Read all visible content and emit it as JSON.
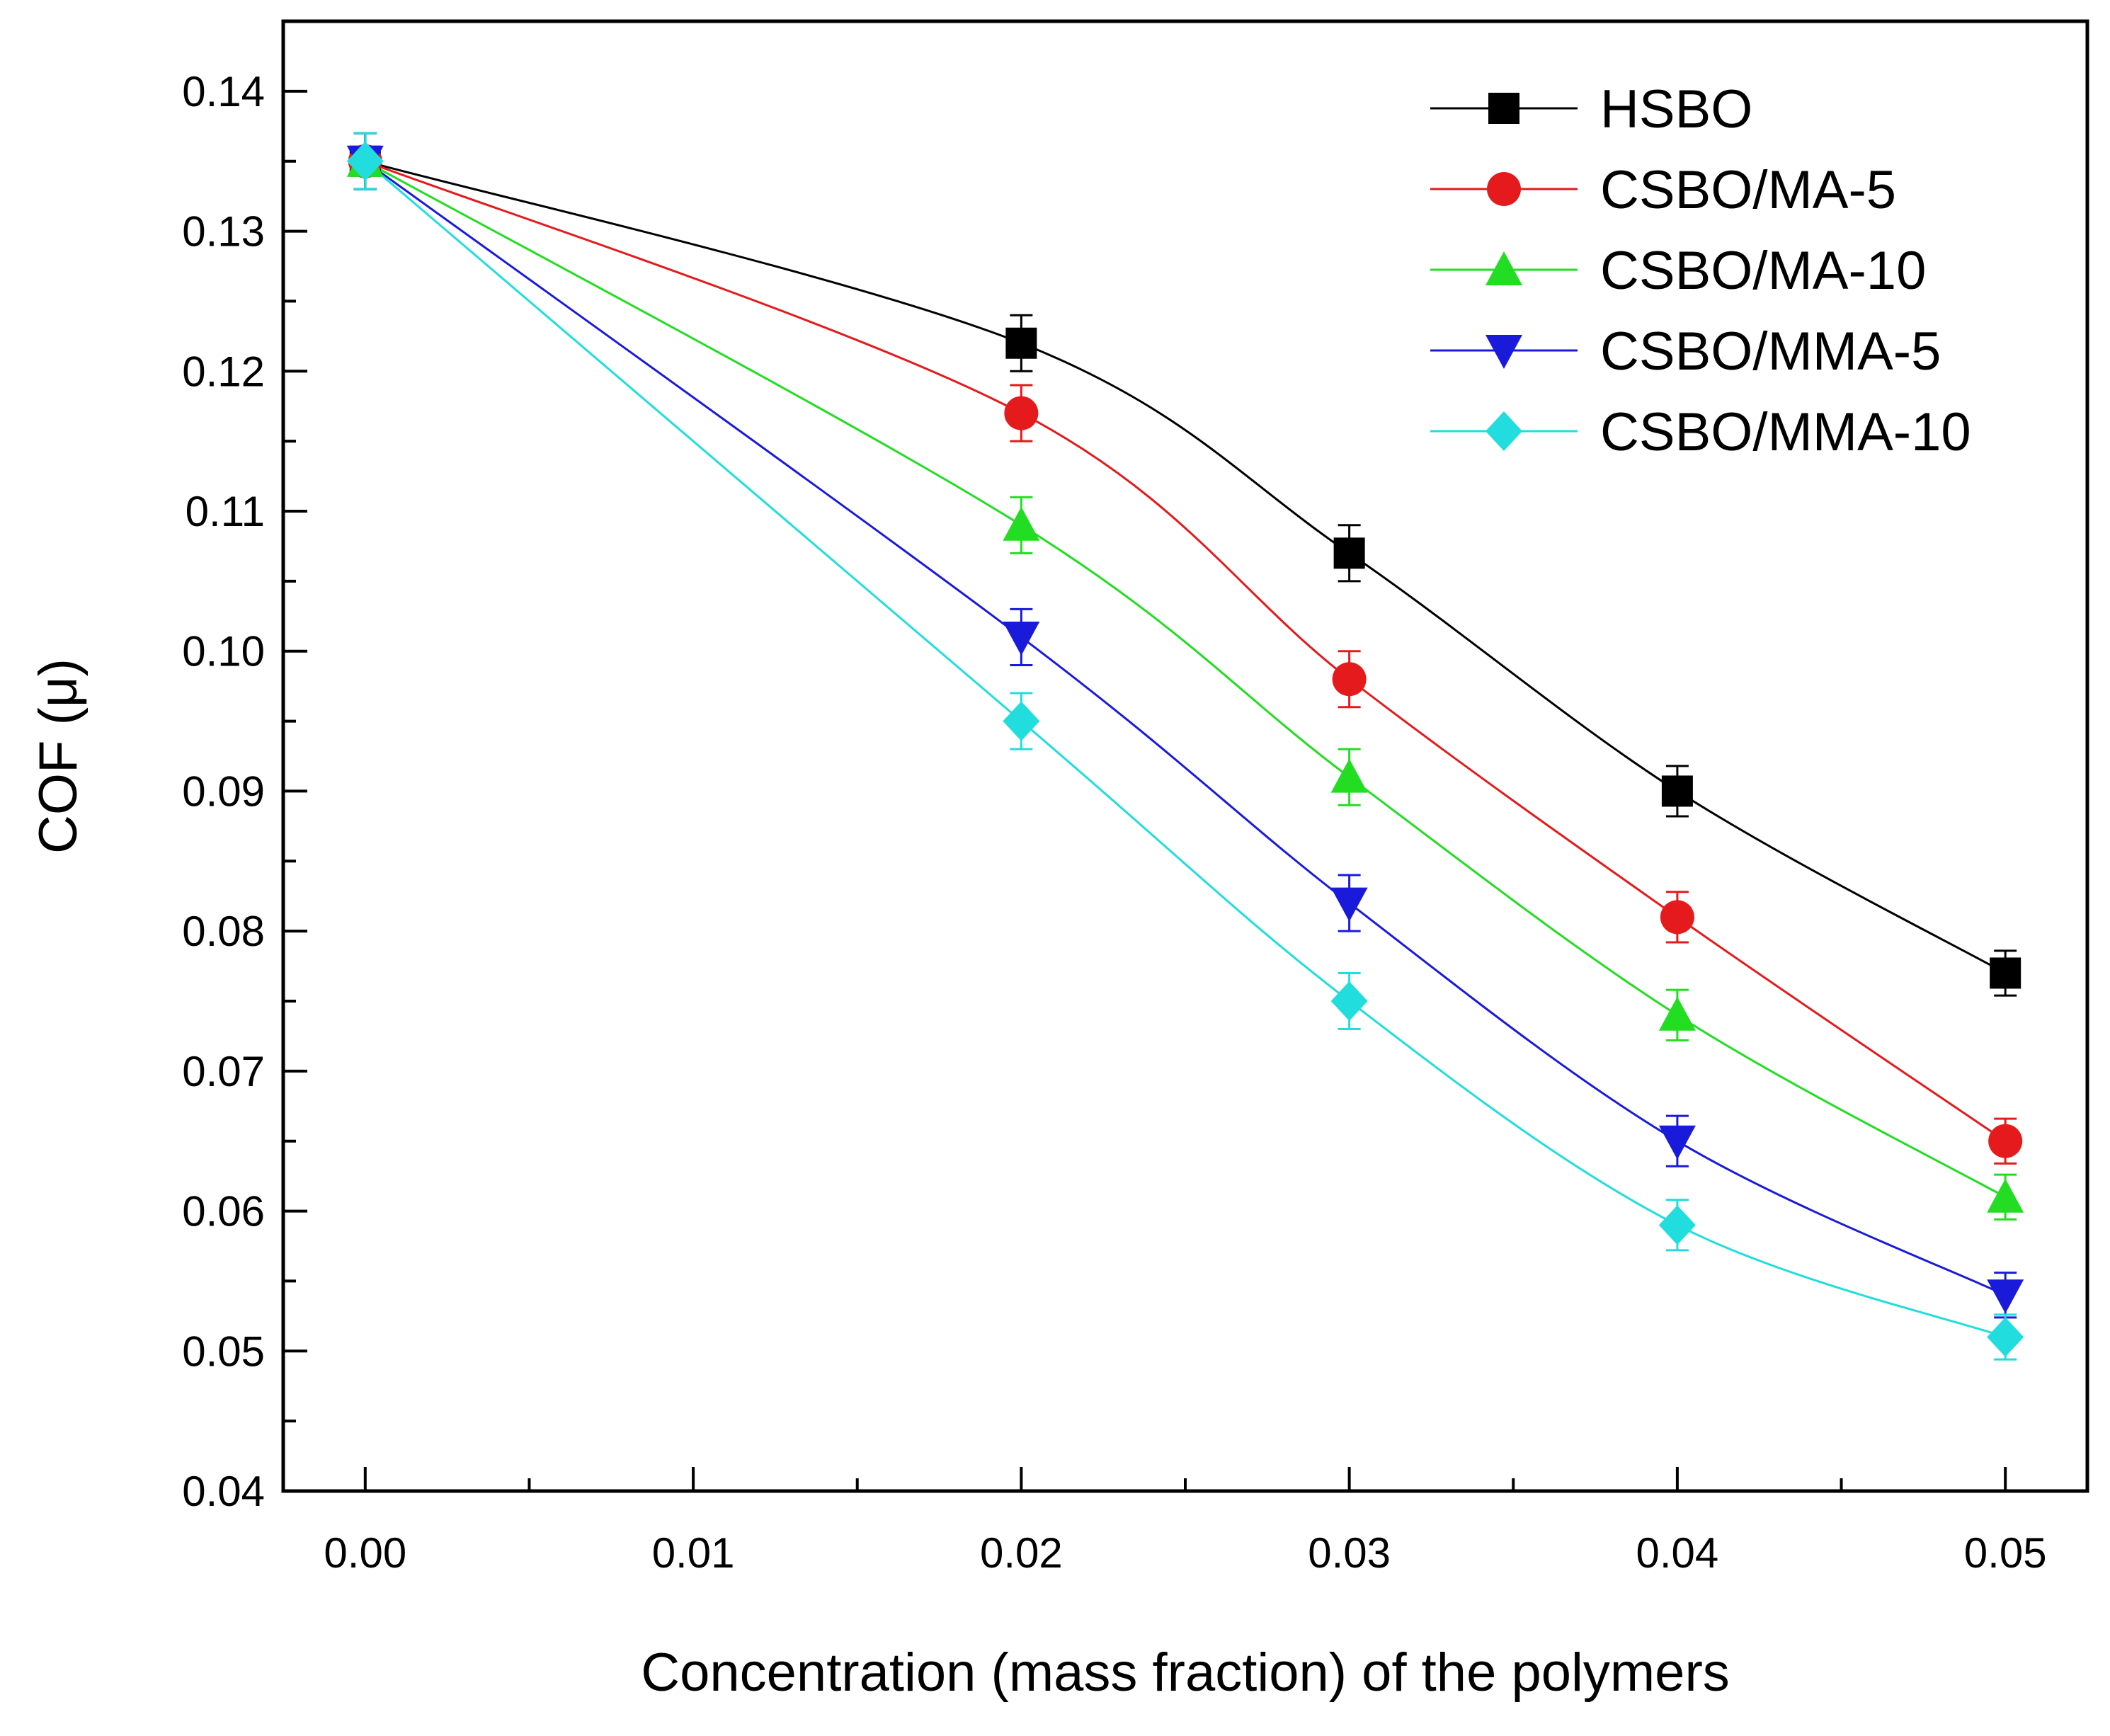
{
  "chart_data": {
    "type": "line",
    "title": "",
    "xlabel": "Concentration (mass fraction) of the polymers",
    "ylabel": "COF (μ)",
    "xlim": [
      -0.0025,
      0.0525
    ],
    "ylim": [
      0.04,
      0.145
    ],
    "x_ticks": [
      "0.00",
      "0.01",
      "0.02",
      "0.03",
      "0.04",
      "0.05"
    ],
    "y_ticks": [
      "0.04",
      "0.05",
      "0.06",
      "0.07",
      "0.08",
      "0.09",
      "0.10",
      "0.11",
      "0.12",
      "0.13",
      "0.14"
    ],
    "x": [
      0.0,
      0.02,
      0.03,
      0.04,
      0.05
    ],
    "legend_position": "top-right",
    "series": [
      {
        "name": "HSBO",
        "marker": "square",
        "color": "#000000",
        "values": [
          0.135,
          0.122,
          0.107,
          0.09,
          0.077
        ],
        "errors": [
          0.002,
          0.002,
          0.002,
          0.0018,
          0.0016
        ]
      },
      {
        "name": "CSBO/MA-5",
        "marker": "circle",
        "color": "#e41a1c",
        "values": [
          0.135,
          0.117,
          0.098,
          0.081,
          0.065
        ],
        "errors": [
          0.002,
          0.002,
          0.002,
          0.0018,
          0.0016
        ]
      },
      {
        "name": "CSBO/MA-10",
        "marker": "triangle-up",
        "color": "#22dd22",
        "values": [
          0.135,
          0.109,
          0.091,
          0.074,
          0.061
        ],
        "errors": [
          0.002,
          0.002,
          0.002,
          0.0018,
          0.0016
        ]
      },
      {
        "name": "CSBO/MMA-5",
        "marker": "triangle-down",
        "color": "#1a1adb",
        "values": [
          0.135,
          0.101,
          0.082,
          0.065,
          0.054
        ],
        "errors": [
          0.002,
          0.002,
          0.002,
          0.0018,
          0.0016
        ]
      },
      {
        "name": "CSBO/MMA-10",
        "marker": "diamond",
        "color": "#22dddd",
        "values": [
          0.135,
          0.095,
          0.075,
          0.059,
          0.051
        ],
        "errors": [
          0.002,
          0.002,
          0.002,
          0.0018,
          0.0016
        ]
      }
    ]
  }
}
